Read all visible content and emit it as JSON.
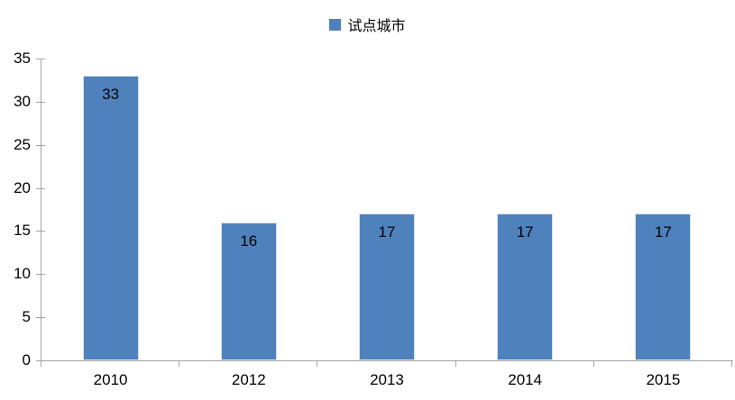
{
  "legend": {
    "label": "试点城市",
    "position": "top-center"
  },
  "chart_data": {
    "type": "bar",
    "title": "",
    "series_name": "试点城市",
    "categories": [
      "2010",
      "2012",
      "2013",
      "2014",
      "2015"
    ],
    "values": [
      33,
      16,
      17,
      17,
      17
    ],
    "xlabel": "",
    "ylabel": "",
    "ylim": [
      0,
      35
    ],
    "ytick_step": 5,
    "yticks": [
      0,
      5,
      10,
      15,
      20,
      25,
      30,
      35
    ],
    "grid": false,
    "legend_position": "top-center",
    "data_labels": "inside-end",
    "bar_color": "#4F81BD",
    "bar_border_color": "#D9E2F0",
    "axis_color": "#A3A3A3",
    "text_color": "#000000",
    "background_color": "#FFFFFF"
  }
}
